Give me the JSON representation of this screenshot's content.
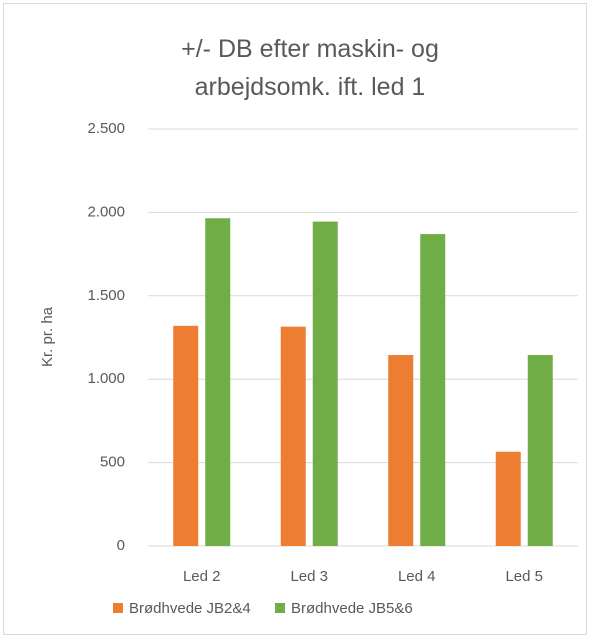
{
  "chart_data": {
    "type": "bar",
    "title": "+/- DB efter maskin- og arbejdsomk. ift. led 1",
    "y_label": "Kr. pr. ha",
    "categories": [
      "Led 2",
      "Led 3",
      "Led 4",
      "Led 5"
    ],
    "series": [
      {
        "name": "Brødhvede JB2&4",
        "color": "#ed7d31",
        "values": [
          1320,
          1315,
          1145,
          565
        ]
      },
      {
        "name": "Brødhvede JB5&6",
        "color": "#70ad47",
        "values": [
          1965,
          1945,
          1870,
          1145
        ]
      }
    ],
    "ylim": [
      0,
      2500
    ],
    "yticks": [
      0,
      500,
      {
        "value": 1000,
        "label": "1.000"
      },
      {
        "value": 1500,
        "label": "1.500"
      },
      {
        "value": 2000,
        "label": "2.000"
      },
      {
        "value": 2500,
        "label": "2.500"
      }
    ],
    "grid": true,
    "legend": "bottom"
  }
}
